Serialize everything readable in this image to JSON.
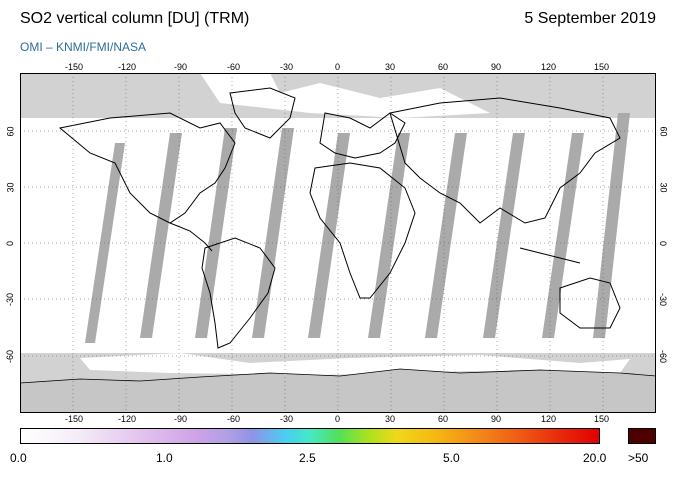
{
  "header": {
    "title": "SO2 vertical column [DU] (TRM)",
    "date": "5 September 2019",
    "credit": "OMI  –  KNMI/FMI/NASA"
  },
  "map": {
    "lon_ticks": [
      "-150",
      "-120",
      "-90",
      "-60",
      "-30",
      "0",
      "30",
      "60",
      "90",
      "120",
      "150"
    ],
    "lat_ticks": [
      "60",
      "30",
      "0",
      "-30",
      "-60"
    ],
    "colors": {
      "no_data": "#d2d2d2",
      "swath_gap": "#a6a6a6",
      "land_outline": "#000000",
      "background": "#ffffff"
    }
  },
  "colorbar": {
    "labels": [
      "0.0",
      "1.0",
      "2.5",
      "5.0",
      "20.0"
    ],
    "max_label": ">50",
    "max_color": "#4d0000"
  }
}
